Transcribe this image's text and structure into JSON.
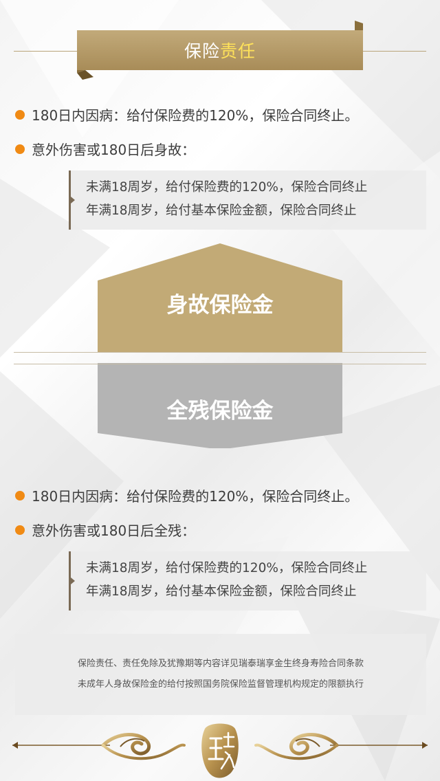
{
  "header": {
    "title_plain": "保险",
    "title_highlight": "责任"
  },
  "death_section": {
    "bullets": [
      {
        "text": "180日内因病：给付保险费的120%，保险合同终止。"
      },
      {
        "text": "意外伤害或180日后身故："
      }
    ],
    "details": [
      "未满18周岁，给付保险费的120%，保险合同终止",
      "年满18周岁，给付基本保险金额，保险合同终止"
    ]
  },
  "badges": {
    "death_benefit": "身故保险金",
    "disability_benefit": "全残保险金"
  },
  "disability_section": {
    "bullets": [
      {
        "text": "180日内因病：给付保险费的120%，保险合同终止。"
      },
      {
        "text": "意外伤害或180日后全残："
      }
    ],
    "details": [
      "未满18周岁，给付保险费的120%，保险合同终止",
      "年满18周岁，给付基本保险金额，保险合同终止"
    ]
  },
  "footnote": {
    "lines": [
      "保险责任、责任免除及犹豫期等内容详见瑞泰瑞享金生终身寿险合同条款",
      "未成年人身故保险金的给付按照国务院保险监督管理机构规定的限额执行"
    ]
  },
  "colors": {
    "gold": "#c2aa76",
    "gray": "#b4b4b4",
    "accent_orange": "#f08a14",
    "title_highlight": "#ffe25a"
  },
  "icons": {
    "bullet": "orange-dot-icon",
    "seal": "rui-seal-icon",
    "ornament": "scroll-ornament-icon"
  }
}
